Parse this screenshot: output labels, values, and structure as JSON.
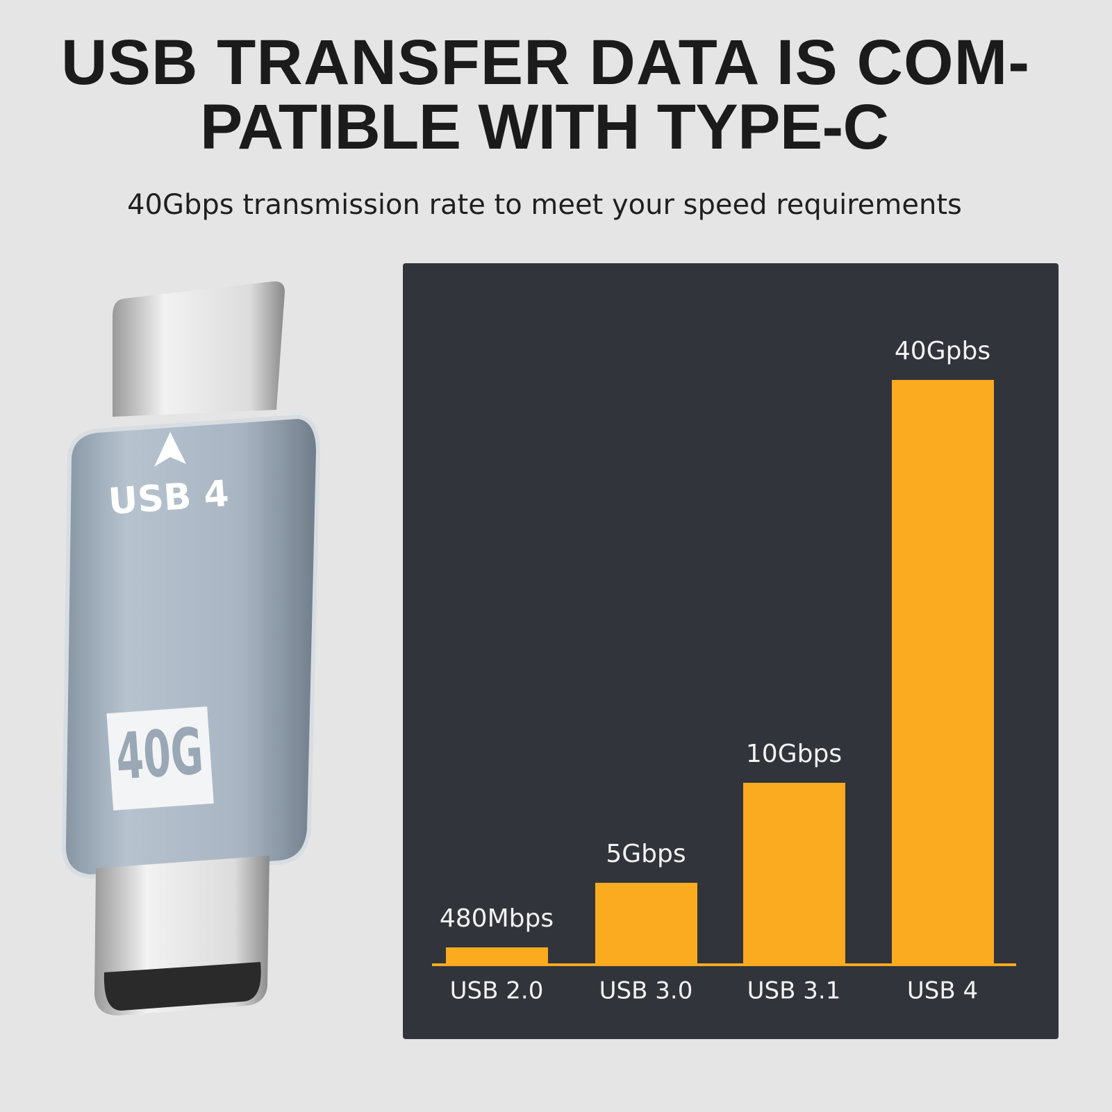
{
  "header": {
    "title_lines": [
      "USB TRANSFER DATA IS COM-",
      "PATIBLE WITH TYPE-C"
    ],
    "subtitle": "40Gbps transmission rate to meet your speed requirements"
  },
  "product": {
    "port_label": "USB 4",
    "speed_badge": "40G"
  },
  "comparison": {
    "items": [
      {
        "label": "USB 2.0",
        "speed": "480Mbps"
      },
      {
        "label": "USB 3.0",
        "speed": "5Gbps"
      },
      {
        "label": "USB 3.1",
        "speed": "10Gbps"
      },
      {
        "label": "USB 4",
        "speed": "40Gpbs"
      }
    ]
  }
}
